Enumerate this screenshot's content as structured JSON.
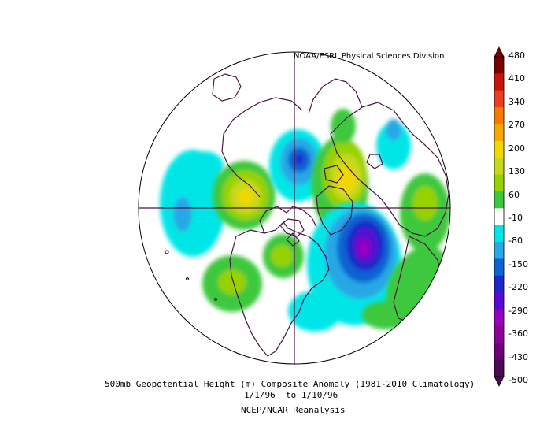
{
  "credit": "NOAA/ESRL Physical Sciences Division",
  "caption": {
    "line1": "500mb Geopotential Height (m) Composite Anomaly (1981-2010 Climatology)",
    "line2": "1/1/96  to 1/10/96",
    "line3": "NCEP/NCAR Reanalysis"
  },
  "colorbar": {
    "labels": [
      "480",
      "410",
      "340",
      "270",
      "200",
      "130",
      "60",
      "-10",
      "-80",
      "-150",
      "-220",
      "-290",
      "-360",
      "-430",
      "-500"
    ],
    "colors": [
      "#7a0000",
      "#c8140a",
      "#e8401e",
      "#f57a00",
      "#f7a800",
      "#f0d800",
      "#c8d81e",
      "#96d200",
      "#3cc83c",
      "#ffffff",
      "#00e6e6",
      "#28a8e6",
      "#0a64d2",
      "#1e28c8",
      "#5a0ad2",
      "#9600be",
      "#8c0096",
      "#6e0078",
      "#4a0a50"
    ]
  }
}
